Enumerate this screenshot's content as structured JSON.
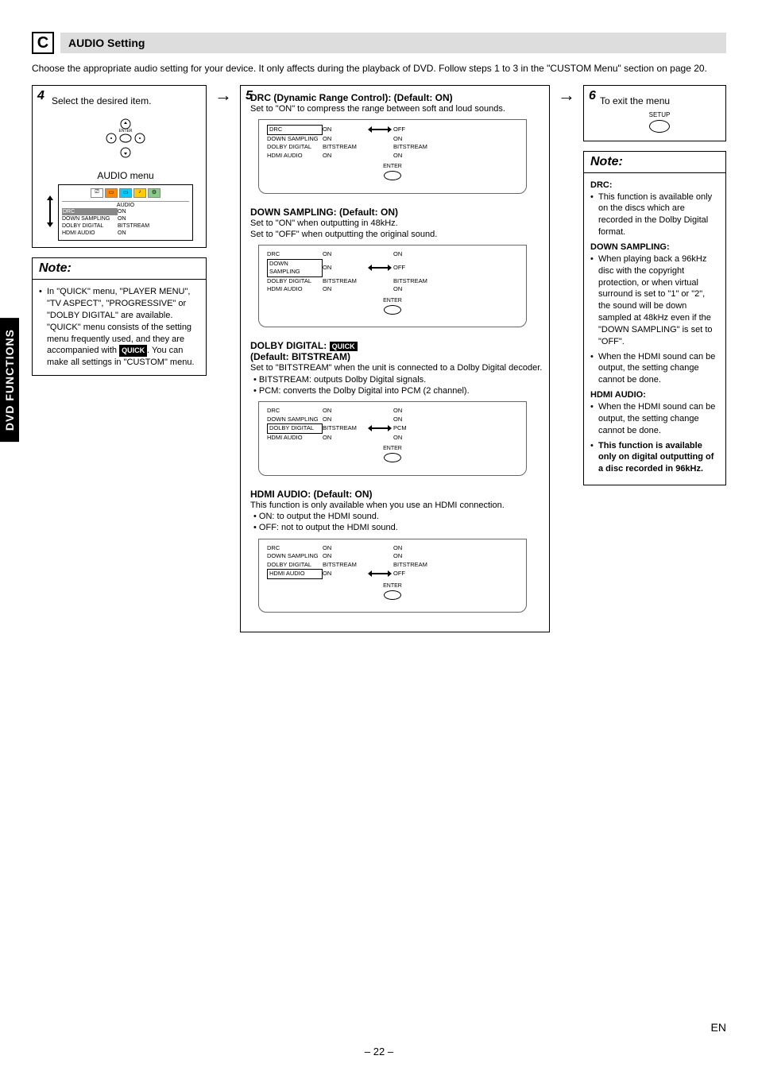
{
  "section": {
    "letter": "C",
    "title": "AUDIO Setting"
  },
  "intro": "Choose the appropriate audio setting for your device. It only affects during the playback of DVD. Follow steps 1 to 3 in the \"CUSTOM Menu\" section on page 20.",
  "sideTab": "DVD FUNCTIONS",
  "step4": {
    "num": "4",
    "text": "Select the desired item.",
    "enterLabel": "ENTER",
    "menuLabel": "AUDIO menu",
    "menuHeader": "AUDIO",
    "rows": [
      {
        "label": "DRC",
        "val": "ON",
        "hl": true
      },
      {
        "label": "DOWN SAMPLING",
        "val": "ON"
      },
      {
        "label": "DOLBY DIGITAL",
        "val": "BITSTREAM"
      },
      {
        "label": "HDMI AUDIO",
        "val": "ON"
      }
    ]
  },
  "noteLeft": {
    "header": "Note:",
    "body1": "In \"QUICK\" menu, \"PLAYER MENU\", \"TV ASPECT\", \"PROGRESSIVE\" or \"DOLBY DIGITAL\" are available. \"QUICK\" menu consists of the setting menu frequently used, and they are accompanied with ",
    "quick": "QUICK",
    "body2": ". You can make all settings in \"CUSTOM\" menu."
  },
  "step5": {
    "num": "5",
    "blocks": [
      {
        "title": "DRC (Dynamic Range Control): (Default: ON)",
        "desc": "Set to \"ON\" to compress the range between soft and loud sounds.",
        "menu": {
          "hlRow": 0,
          "rows": [
            {
              "l": "DRC",
              "v1": "ON",
              "v2": "OFF",
              "arrow": true
            },
            {
              "l": "DOWN SAMPLING",
              "v1": "ON",
              "v2": "ON"
            },
            {
              "l": "DOLBY DIGITAL",
              "v1": "BITSTREAM",
              "v2": "BITSTREAM"
            },
            {
              "l": "HDMI AUDIO",
              "v1": "ON",
              "v2": "ON"
            }
          ],
          "enter": "ENTER"
        }
      },
      {
        "title": "DOWN SAMPLING: (Default: ON)",
        "desc": "Set to \"ON\" when outputting in 48kHz.\nSet to \"OFF\" when outputting the original sound.",
        "menu": {
          "hlRow": 1,
          "rows": [
            {
              "l": "DRC",
              "v1": "ON",
              "v2": "ON"
            },
            {
              "l": "DOWN SAMPLING",
              "v1": "ON",
              "v2": "OFF",
              "arrow": true
            },
            {
              "l": "DOLBY DIGITAL",
              "v1": "BITSTREAM",
              "v2": "BITSTREAM"
            },
            {
              "l": "HDMI AUDIO",
              "v1": "ON",
              "v2": "ON"
            }
          ],
          "enter": "ENTER"
        }
      },
      {
        "title": "DOLBY DIGITAL:",
        "quick": "QUICK",
        "title2": "(Default: BITSTREAM)",
        "desc": "Set to \"BITSTREAM\" when the unit is connected to a Dolby Digital decoder.",
        "bullets": [
          "BITSTREAM: outputs Dolby Digital signals.",
          "PCM: converts the Dolby Digital into PCM (2 channel)."
        ],
        "menu": {
          "hlRow": 2,
          "rows": [
            {
              "l": "DRC",
              "v1": "ON",
              "v2": "ON"
            },
            {
              "l": "DOWN SAMPLING",
              "v1": "ON",
              "v2": "ON"
            },
            {
              "l": "DOLBY DIGITAL",
              "v1": "BITSTREAM",
              "v2": "PCM",
              "arrow": true
            },
            {
              "l": "HDMI AUDIO",
              "v1": "ON",
              "v2": "ON"
            }
          ],
          "enter": "ENTER"
        }
      },
      {
        "title": "HDMI AUDIO: (Default: ON)",
        "desc": "This function is only available when you use an HDMI connection.",
        "bullets": [
          "ON: to output the HDMI sound.",
          "OFF: not to output the HDMI sound."
        ],
        "menu": {
          "hlRow": 3,
          "rows": [
            {
              "l": "DRC",
              "v1": "ON",
              "v2": "ON"
            },
            {
              "l": "DOWN SAMPLING",
              "v1": "ON",
              "v2": "ON"
            },
            {
              "l": "DOLBY DIGITAL",
              "v1": "BITSTREAM",
              "v2": "BITSTREAM"
            },
            {
              "l": "HDMI AUDIO",
              "v1": "ON",
              "v2": "OFF",
              "arrow": true
            }
          ],
          "enter": "ENTER"
        }
      }
    ]
  },
  "step6": {
    "num": "6",
    "text": "To exit the menu",
    "setup": "SETUP"
  },
  "noteRight": {
    "header": "Note:",
    "sections": [
      {
        "h": "DRC:",
        "items": [
          "This function is available only on the discs which are recorded in the Dolby Digital format."
        ]
      },
      {
        "h": "DOWN SAMPLING:",
        "items": [
          "When playing back a 96kHz disc with the copyright protection, or when virtual surround is set to \"1\" or \"2\", the sound will be down sampled at 48kHz even if the \"DOWN SAMPLING\" is set to \"OFF\".",
          "When the HDMI sound can be output, the setting change cannot be done."
        ]
      },
      {
        "h": "HDMI AUDIO:",
        "items": [
          "When the HDMI sound can be output, the setting change cannot be done.",
          "<b>This function is available only on digital outputting of a disc recorded in 96kHz.</b>"
        ]
      }
    ]
  },
  "footer": {
    "page": "– 22 –",
    "lang": "EN"
  }
}
